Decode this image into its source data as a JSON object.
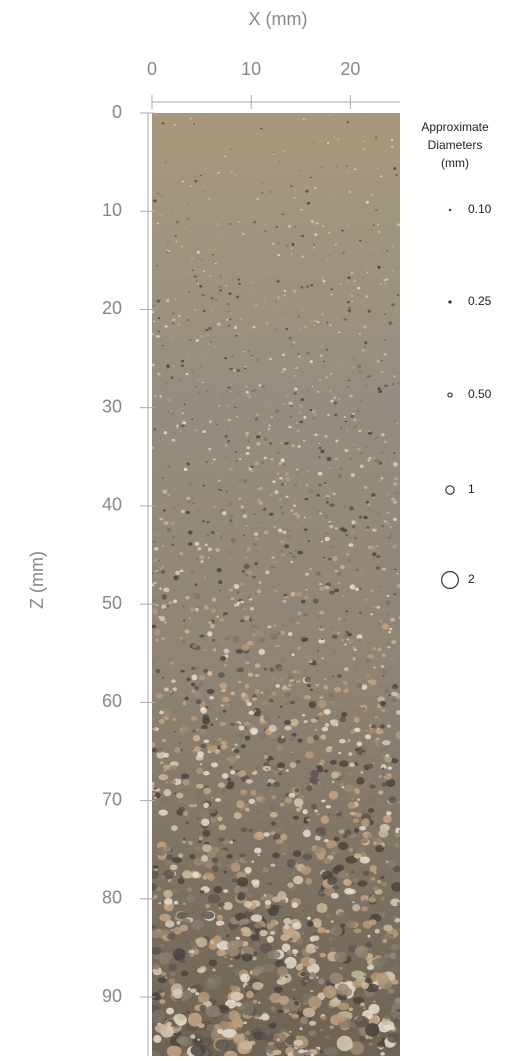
{
  "chart_data": {
    "type": "image",
    "x_label": "X (mm)",
    "y_label": "Z (mm)",
    "xlim": [
      0,
      25
    ],
    "xticks": [
      0,
      10,
      20
    ],
    "ylim": [
      0,
      96
    ],
    "yticks": [
      0,
      10,
      20,
      30,
      40,
      50,
      60,
      70,
      80,
      90
    ],
    "y_inverted": true,
    "legend_title": [
      "Approximate",
      "Diameters",
      "(mm)"
    ],
    "legend_sizes": [
      {
        "value": 0.1,
        "label": "0.10"
      },
      {
        "value": 0.25,
        "label": "0.25"
      },
      {
        "value": 0.5,
        "label": "0.50"
      },
      {
        "value": 1,
        "label": "1"
      },
      {
        "value": 2,
        "label": "2"
      }
    ]
  }
}
